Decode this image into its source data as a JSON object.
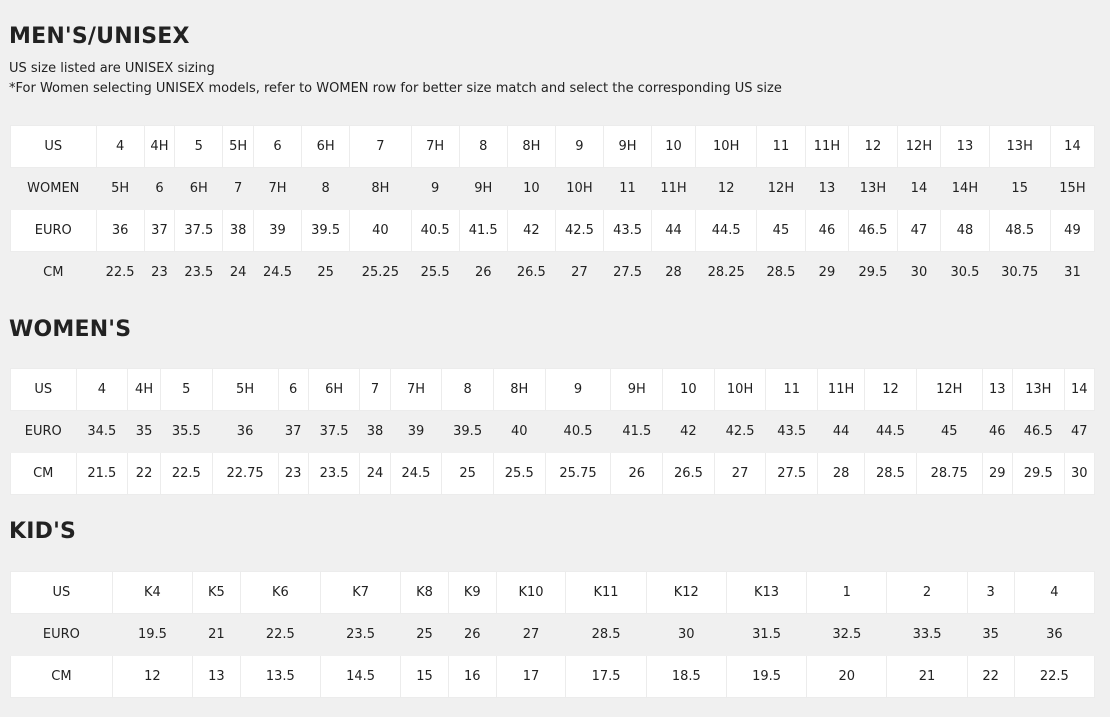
{
  "mens": {
    "title": "MEN'S/UNISEX",
    "note1": "US size listed are UNISEX sizing",
    "note2": "*For Women selecting UNISEX models, refer to WOMEN row for better size match and select the corresponding US size",
    "rows": [
      {
        "label": "US",
        "values": [
          "4",
          "4H",
          "5",
          "5H",
          "6",
          "6H",
          "7",
          "7H",
          "8",
          "8H",
          "9",
          "9H",
          "10",
          "10H",
          "11",
          "11H",
          "12",
          "12H",
          "13",
          "13H",
          "14"
        ]
      },
      {
        "label": "WOMEN",
        "values": [
          "5H",
          "6",
          "6H",
          "7",
          "7H",
          "8",
          "8H",
          "9",
          "9H",
          "10",
          "10H",
          "11",
          "11H",
          "12",
          "12H",
          "13",
          "13H",
          "14",
          "14H",
          "15",
          "15H"
        ]
      },
      {
        "label": "EURO",
        "values": [
          "36",
          "37",
          "37.5",
          "38",
          "39",
          "39.5",
          "40",
          "40.5",
          "41.5",
          "42",
          "42.5",
          "43.5",
          "44",
          "44.5",
          "45",
          "46",
          "46.5",
          "47",
          "48",
          "48.5",
          "49"
        ]
      },
      {
        "label": "CM",
        "values": [
          "22.5",
          "23",
          "23.5",
          "24",
          "24.5",
          "25",
          "25.25",
          "25.5",
          "26",
          "26.5",
          "27",
          "27.5",
          "28",
          "28.25",
          "28.5",
          "29",
          "29.5",
          "30",
          "30.5",
          "30.75",
          "31"
        ]
      }
    ]
  },
  "womens": {
    "title": "WOMEN'S",
    "rows": [
      {
        "label": "US",
        "values": [
          "4",
          "4H",
          "5",
          "5H",
          "6",
          "6H",
          "7",
          "7H",
          "8",
          "8H",
          "9",
          "9H",
          "10",
          "10H",
          "11",
          "11H",
          "12",
          "12H",
          "13",
          "13H",
          "14"
        ]
      },
      {
        "label": "EURO",
        "values": [
          "34.5",
          "35",
          "35.5",
          "36",
          "37",
          "37.5",
          "38",
          "39",
          "39.5",
          "40",
          "40.5",
          "41.5",
          "42",
          "42.5",
          "43.5",
          "44",
          "44.5",
          "45",
          "46",
          "46.5",
          "47"
        ]
      },
      {
        "label": "CM",
        "values": [
          "21.5",
          "22",
          "22.5",
          "22.75",
          "23",
          "23.5",
          "24",
          "24.5",
          "25",
          "25.5",
          "25.75",
          "26",
          "26.5",
          "27",
          "27.5",
          "28",
          "28.5",
          "28.75",
          "29",
          "29.5",
          "30"
        ]
      }
    ]
  },
  "kids": {
    "title": "KID'S",
    "rows": [
      {
        "label": "US",
        "values": [
          "K4",
          "K5",
          "K6",
          "K7",
          "K8",
          "K9",
          "K10",
          "K11",
          "K12",
          "K13",
          "1",
          "2",
          "3",
          "4"
        ]
      },
      {
        "label": "EURO",
        "values": [
          "19.5",
          "21",
          "22.5",
          "23.5",
          "25",
          "26",
          "27",
          "28.5",
          "30",
          "31.5",
          "32.5",
          "33.5",
          "35",
          "36"
        ]
      },
      {
        "label": "CM",
        "values": [
          "12",
          "13",
          "13.5",
          "14.5",
          "15",
          "16",
          "17",
          "17.5",
          "18.5",
          "19.5",
          "20",
          "21",
          "22",
          "22.5"
        ]
      }
    ]
  }
}
